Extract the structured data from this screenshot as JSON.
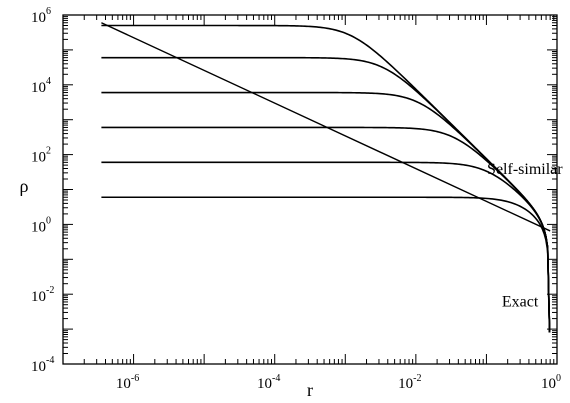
{
  "chart_data": {
    "type": "line",
    "title": "",
    "xlabel": "r",
    "ylabel": "ρ",
    "xscale": "log",
    "yscale": "log",
    "xlim": [
      1e-07,
      1
    ],
    "ylim": [
      0.0001,
      1000000
    ],
    "x_ticks": [
      {
        "base": "10",
        "exp": "-6",
        "value": 1e-06
      },
      {
        "base": "10",
        "exp": "-4",
        "value": 0.0001
      },
      {
        "base": "10",
        "exp": "-2",
        "value": 0.01
      },
      {
        "base": "10",
        "exp": "0",
        "value": 1
      }
    ],
    "y_ticks": [
      {
        "base": "10",
        "exp": "-4",
        "value": 0.0001
      },
      {
        "base": "10",
        "exp": "-2",
        "value": 0.01
      },
      {
        "base": "10",
        "exp": "0",
        "value": 1
      },
      {
        "base": "10",
        "exp": "2",
        "value": 100
      },
      {
        "base": "10",
        "exp": "4",
        "value": 10000
      },
      {
        "base": "10",
        "exp": "6",
        "value": 1000000
      }
    ],
    "grid": false,
    "legend": "none",
    "series": [
      {
        "central_density": 500000,
        "r_min": 3.5e-07,
        "r_max": 0.78
      },
      {
        "central_density": 60000,
        "r_min": 3.5e-07,
        "r_max": 0.78
      },
      {
        "central_density": 6000,
        "r_min": 3.5e-07,
        "r_max": 0.78
      },
      {
        "central_density": 600,
        "r_min": 3.5e-07,
        "r_max": 0.78
      },
      {
        "central_density": 60,
        "r_min": 3.5e-07,
        "r_max": 0.78
      },
      {
        "central_density": 6,
        "r_min": 3.5e-07,
        "r_max": 0.78
      }
    ],
    "self_similar": {
      "x": [
        3.5e-07,
        0.8
      ],
      "y": [
        600000,
        0.65
      ]
    },
    "annotations": [
      {
        "text": "Self-similar",
        "x": 0.35,
        "y": 28
      },
      {
        "text": "Exact",
        "x": 0.3,
        "y": 0.0045
      }
    ]
  }
}
